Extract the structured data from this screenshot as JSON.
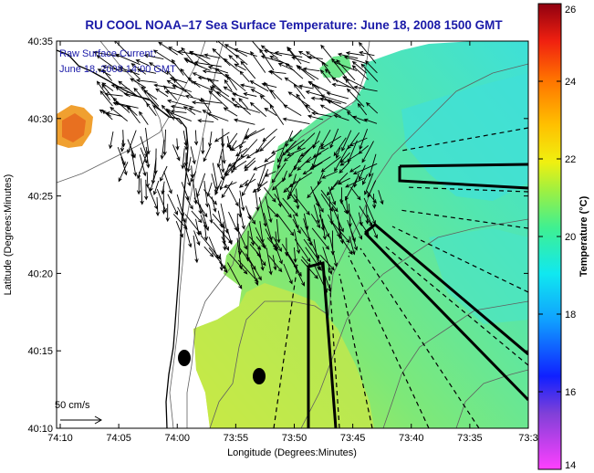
{
  "chart_data": {
    "type": "heatmap",
    "title": "RU COOL  NOAA–17  Sea Surface Temperature:  June 18, 2008 1500 GMT",
    "xlabel": "Longitude (Degrees:Minutes)",
    "ylabel": "Latitude (Degrees:Minutes)",
    "x_ticks": [
      "74:10",
      "74:05",
      "74:00",
      "73:55",
      "73:50",
      "73:45",
      "73:40",
      "73:35",
      "73:3"
    ],
    "y_ticks": [
      "40:35",
      "40:30",
      "40:25",
      "40:20",
      "40:15",
      "40:10"
    ],
    "colorbar": {
      "label": "Temperature (°C)",
      "range": [
        14,
        26
      ],
      "ticks": [
        "26",
        "24",
        "22",
        "20",
        "18",
        "16",
        "14"
      ]
    },
    "legend": {
      "line1": "Raw Surface Current:",
      "line2": "June 18, 2008 14:00 GMT"
    },
    "scale_label": "50 cm/s",
    "colors": {
      "title": "#1a1aa8",
      "land": "#ffffff",
      "sst_main": "#6ee88c",
      "sst_warm": "#d7ec3c",
      "sst_cool": "#3fe0c8",
      "sst_hot": "#f08a20"
    }
  }
}
